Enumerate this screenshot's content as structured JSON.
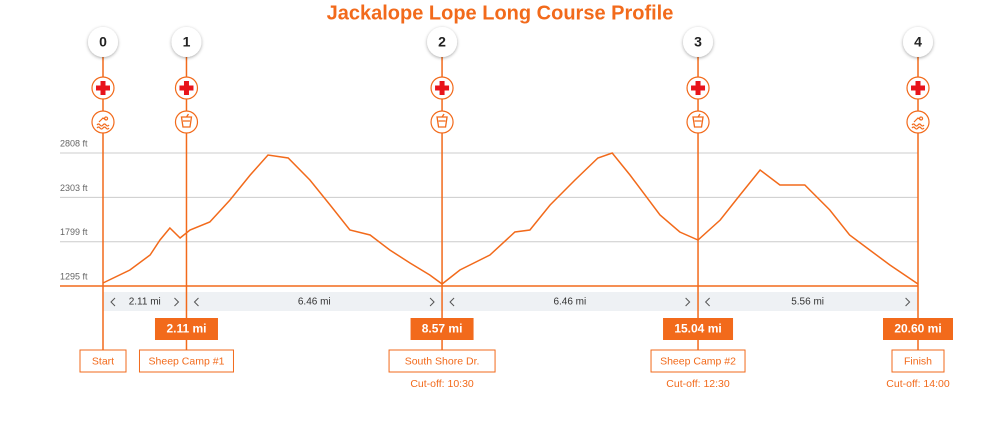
{
  "chart_data": {
    "type": "line",
    "title": "Jackalope Lope Long Course Profile",
    "color": "#f26a1b",
    "grid": true,
    "xlim": [
      0,
      20.6
    ],
    "ylim": [
      1295,
      2808
    ],
    "yticks": [
      {
        "value": 1295,
        "label": "1295 ft"
      },
      {
        "value": 1799,
        "label": "1799 ft"
      },
      {
        "value": 2303,
        "label": "2303 ft"
      },
      {
        "value": 2808,
        "label": "2808 ft"
      }
    ],
    "x": [
      0,
      0.68,
      1.19,
      1.44,
      1.69,
      1.95,
      2.2,
      2.7,
      3.21,
      3.72,
      4.17,
      4.68,
      5.23,
      5.74,
      6.24,
      6.75,
      7.25,
      7.76,
      8.26,
      8.57,
      9.02,
      9.78,
      10.41,
      10.79,
      11.3,
      11.93,
      12.51,
      12.87,
      13.32,
      14.08,
      14.58,
      15.04,
      15.6,
      16.1,
      16.61,
      17.11,
      17.74,
      18.37,
      18.87,
      19.38,
      19.89,
      20.6
    ],
    "values": [
      1329,
      1477,
      1648,
      1818,
      1955,
      1841,
      1932,
      2023,
      2273,
      2558,
      2785,
      2751,
      2501,
      2217,
      1932,
      1875,
      1705,
      1557,
      1420,
      1318,
      1477,
      1648,
      1909,
      1932,
      2217,
      2501,
      2751,
      2808,
      2558,
      2103,
      1909,
      1818,
      2046,
      2330,
      2615,
      2444,
      2444,
      2160,
      1875,
      1705,
      1534,
      1318
    ],
    "stations": [
      {
        "number": 0,
        "name": "Start",
        "icons": [
          "medical",
          "swim"
        ]
      },
      {
        "number": 1,
        "name": "Sheep Camp #1",
        "mile": {
          "value": 2.11,
          "label": "2.11 mi"
        },
        "icons": [
          "medical",
          "cup"
        ]
      },
      {
        "number": 2,
        "name": "South Shore Dr.",
        "mile": {
          "value": 8.57,
          "label": "8.57 mi"
        },
        "cutoff": "Cut-off: 10:30",
        "icons": [
          "medical",
          "cup"
        ]
      },
      {
        "number": 3,
        "name": "Sheep Camp #2",
        "mile": {
          "value": 15.04,
          "label": "15.04 mi"
        },
        "cutoff": "Cut-off: 12:30",
        "icons": [
          "medical",
          "cup"
        ]
      },
      {
        "number": 4,
        "name": "Finish",
        "mile": {
          "value": 20.6,
          "label": "20.60 mi"
        },
        "cutoff": "Cut-off: 14:00",
        "icons": [
          "medical",
          "swim"
        ]
      }
    ],
    "segments": [
      {
        "value": 2.11,
        "label": "2.11 mi"
      },
      {
        "value": 6.46,
        "label": "6.46 mi"
      },
      {
        "value": 6.46,
        "label": "6.46 mi"
      },
      {
        "value": 5.56,
        "label": "5.56 mi"
      }
    ]
  }
}
